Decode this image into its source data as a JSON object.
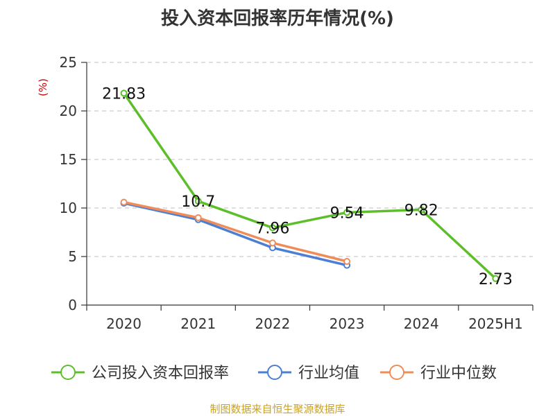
{
  "title": "投入资本回报率历年情况(%)",
  "source": "制图数据来自恒生聚源数据库",
  "colors": {
    "company": "#5cbf2a",
    "industry_avg": "#4a7fd4",
    "industry_median": "#f08c5a",
    "grid": "#cccccc",
    "axis": "#333333",
    "unit": "#cc0000"
  },
  "chart_data": {
    "type": "line",
    "categories": [
      "2020",
      "2021",
      "2022",
      "2023",
      "2024",
      "2025H1"
    ],
    "ylabel": "(%)",
    "ylim": [
      0,
      25
    ],
    "yticks": [
      0,
      5,
      10,
      15,
      20,
      25
    ],
    "grid": true,
    "legend_position": "bottom",
    "series": [
      {
        "name": "公司投入资本回报率",
        "values": [
          21.83,
          10.7,
          7.96,
          9.54,
          9.82,
          2.73
        ],
        "labels": [
          "21.83",
          "10.7",
          "7.96",
          "9.54",
          "9.82",
          "2.73"
        ]
      },
      {
        "name": "行业均值",
        "values": [
          10.5,
          8.8,
          5.9,
          4.1,
          null,
          null
        ]
      },
      {
        "name": "行业中位数",
        "values": [
          10.6,
          9.0,
          6.4,
          4.5,
          null,
          null
        ]
      }
    ]
  }
}
